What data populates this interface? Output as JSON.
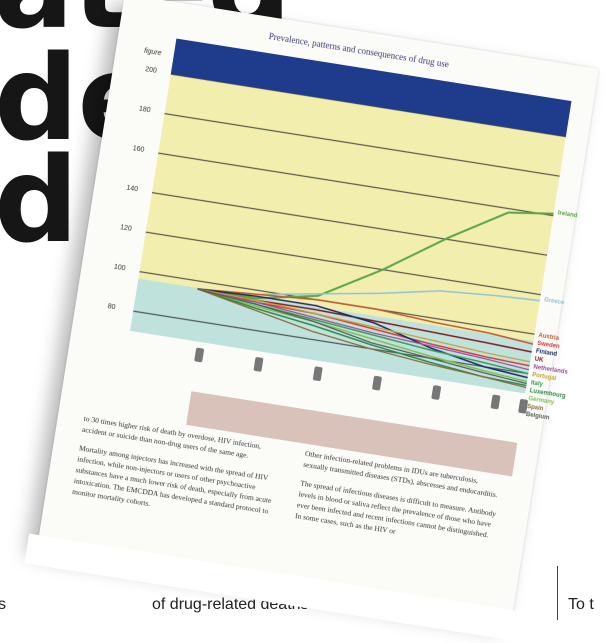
{
  "background": {
    "headline_line1": "ated deaths",
    "headline_line2": "d",
    "bottom_caption": "of drug-related deaths rose",
    "bottom_left_fragment": "s",
    "bottom_right_fragment": "To t"
  },
  "page": {
    "header": "Prevalence, patterns and consequences of drug use",
    "chart": {
      "units_label": "figure",
      "y_tick_labels": [
        "200",
        "180",
        "160",
        "140",
        "120",
        "100",
        "80"
      ],
      "series_labels": [
        "Ireland",
        "Greece",
        "Austria",
        "Sweden",
        "Finland",
        "UK",
        "Netherlands",
        "Portugal",
        "Italy",
        "Luxembourg",
        "Germany",
        "Spain",
        "Belgium"
      ],
      "colors": {
        "title_bar": "#1f3c8c",
        "plot_upper": "#f2eeae",
        "plot_lower": "#bfe2dc",
        "ireland": "#5aa845",
        "greece": "#8fc4d8",
        "note": "#d9c2ba"
      }
    },
    "body": {
      "left_col_lead": "to 30 times higher risk of death by overdose, HIV infection, accident or suicide than non-drug users of the same age.",
      "left_col_p2": "Mortality among injectors has increased with the spread of HIV infection, while non-injectors or users of other psychoactive substances have a much lower risk of death, especially from acute intoxication. The EMCDDA has developed a standard protocol to monitor mortality cohorts.",
      "right_col_p1": "Other infection-related problems in IDUs are tuberculosis, sexually transmitted diseases (STDs), abscesses and endocarditis.",
      "right_col_p2": "The spread of infectious diseases is difficult to measure. Antibody levels in blood or saliva reflect the prevalence of those who have ever been infected and recent infections cannot be distinguished. In some cases, such as the HIV or"
    }
  }
}
